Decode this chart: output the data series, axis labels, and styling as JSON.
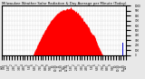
{
  "title": "Milwaukee Weather Solar Radiation & Day Average per Minute (Today)",
  "bg_color": "#e8e8e8",
  "plot_bg_color": "#ffffff",
  "grid_color": "#c0c0c0",
  "bar_color": "#ff0000",
  "avg_line_color": "#0000cc",
  "ylim": [
    0,
    1000
  ],
  "xlim": [
    0,
    1440
  ],
  "num_points": 1440,
  "sunrise": 360,
  "sunset": 1170,
  "peak_minute": 750,
  "peak_value": 920,
  "avg_value": 260,
  "avg_minute": 1395,
  "title_fontsize": 2.8,
  "tick_fontsize": 2.0,
  "y_ticks": [
    0,
    100,
    200,
    300,
    400,
    500,
    600,
    700,
    800,
    900,
    1000
  ],
  "x_tick_interval": 30
}
